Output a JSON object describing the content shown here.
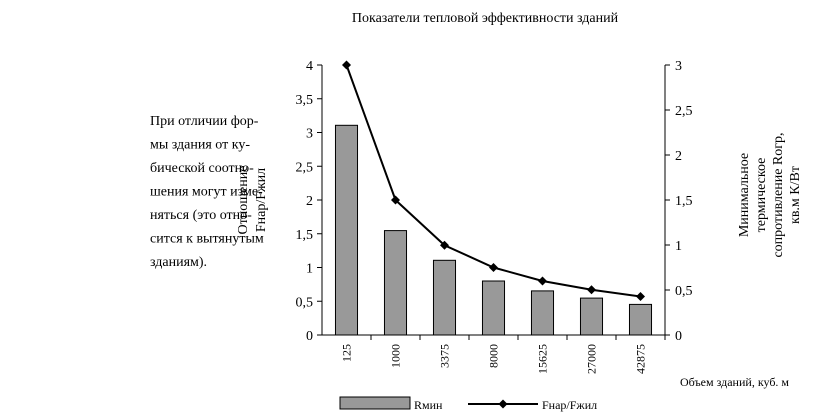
{
  "body_text": [
    "При отличии фор-",
    "мы здания от ку-",
    "бической соотно-",
    "шения могут изме-",
    "няться (это отно-",
    "сится к вытянутым",
    "зданиям)."
  ],
  "chart_data": {
    "type": "bar_line",
    "title": "Показатели тепловой эффективности зданий",
    "x_label": "Объем зданий, куб. м",
    "y_label": [
      "Отношение",
      "Fнар/Fжил"
    ],
    "y2_label": [
      "Минимальное",
      "термическое",
      "сопротивление Rогр,",
      "кв.м К/Вт"
    ],
    "categories": [
      "125",
      "1000",
      "3375",
      "8000",
      "15625",
      "27000",
      "42875"
    ],
    "ylim": [
      0,
      4
    ],
    "yticks": [
      0,
      {
        "value": 0.5,
        "label": "0,5"
      },
      1,
      {
        "value": 1.5,
        "label": "1,5"
      },
      2,
      {
        "value": 2.5,
        "label": "2,5"
      },
      3,
      {
        "value": 3.5,
        "label": "3,5"
      },
      4
    ],
    "y2lim": [
      0,
      3
    ],
    "y2ticks": [
      0,
      {
        "value": 0.5,
        "label": "0,5"
      },
      1,
      {
        "value": 1.5,
        "label": "1,5"
      },
      2,
      {
        "value": 2.5,
        "label": "2,5"
      },
      3
    ],
    "series": [
      {
        "name": "Rмин",
        "type": "bar",
        "axis": "y2",
        "color": "#999999",
        "values": [
          2.33,
          1.16,
          0.83,
          0.6,
          0.49,
          0.41,
          0.34
        ]
      },
      {
        "name": "Fнар/Fжил",
        "type": "line",
        "axis": "y",
        "color": "#000000",
        "values": [
          4,
          2,
          1.33,
          1,
          0.8,
          0.67,
          0.57
        ]
      }
    ]
  }
}
